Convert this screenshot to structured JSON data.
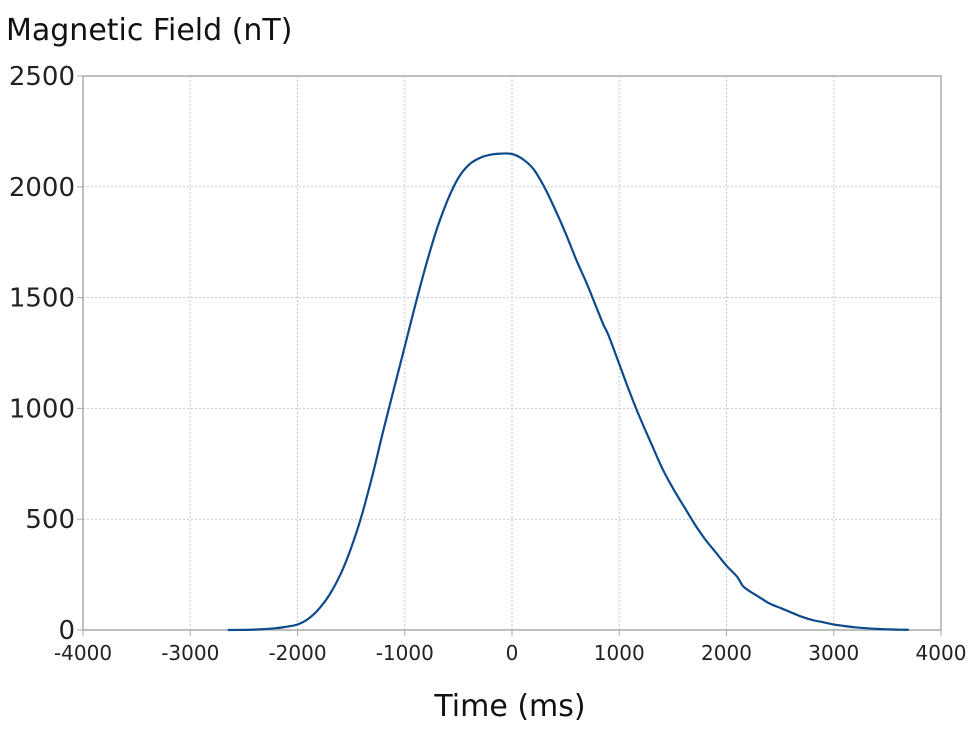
{
  "chart_data": {
    "type": "line",
    "title": "",
    "ylabel": "Magnetic Field (nT)",
    "xlabel": "Time (ms)",
    "xlim": [
      -4000,
      4000
    ],
    "ylim": [
      0,
      2500
    ],
    "x_ticks": [
      -4000,
      -3000,
      -2000,
      -1000,
      0,
      1000,
      2000,
      3000,
      4000
    ],
    "y_ticks": [
      0,
      500,
      1000,
      1500,
      2000,
      2500
    ],
    "grid": true,
    "line_color": "#0d4a8c",
    "series": [
      {
        "x": [
          -2650,
          -2400,
          -2200,
          -2100,
          -2000,
          -1900,
          -1800,
          -1700,
          -1600,
          -1500,
          -1400,
          -1300,
          -1200,
          -1100,
          -1000,
          -900,
          -800,
          -700,
          -600,
          -500,
          -400,
          -300,
          -200,
          -100,
          0,
          100,
          200,
          300,
          400,
          500,
          600,
          700,
          800,
          850,
          900,
          1000,
          1100,
          1200,
          1300,
          1400,
          1500,
          1600,
          1700,
          1800,
          1900,
          2000,
          2100,
          2150,
          2200,
          2300,
          2400,
          2500,
          2600,
          2700,
          2800,
          2900,
          3000,
          3100,
          3200,
          3300,
          3400,
          3500,
          3600,
          3700
        ],
        "y": [
          0,
          2,
          8,
          15,
          25,
          50,
          95,
          160,
          250,
          370,
          520,
          700,
          900,
          1090,
          1280,
          1470,
          1650,
          1810,
          1940,
          2040,
          2100,
          2130,
          2145,
          2150,
          2148,
          2125,
          2080,
          2000,
          1900,
          1790,
          1670,
          1560,
          1440,
          1380,
          1330,
          1200,
          1070,
          950,
          840,
          730,
          640,
          560,
          480,
          410,
          350,
          290,
          240,
          200,
          180,
          150,
          120,
          100,
          80,
          60,
          45,
          35,
          25,
          18,
          12,
          8,
          5,
          3,
          2,
          1
        ]
      }
    ]
  }
}
